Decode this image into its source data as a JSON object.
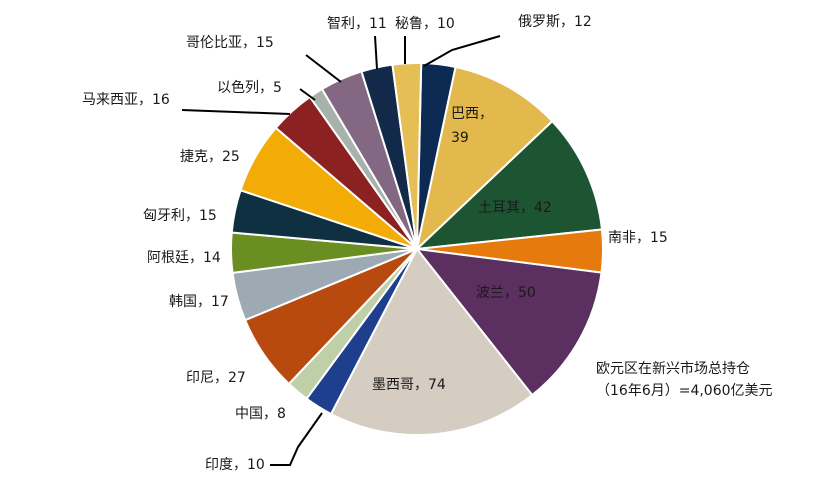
{
  "chart_data": {
    "type": "pie",
    "title": "",
    "slices": [
      {
        "label": "俄罗斯",
        "value": 12,
        "color": "#0d2b52"
      },
      {
        "label": "巴西",
        "value": 39,
        "color": "#e3b84d"
      },
      {
        "label": "土耳其",
        "value": 42,
        "color": "#1d5533"
      },
      {
        "label": "南非",
        "value": 15,
        "color": "#e67a0d"
      },
      {
        "label": "波兰",
        "value": 50,
        "color": "#5b2f5f"
      },
      {
        "label": "墨西哥",
        "value": 74,
        "color": "#d5ccc2"
      },
      {
        "label": "印度",
        "value": 10,
        "color": "#1e3f8e"
      },
      {
        "label": "中国",
        "value": 8,
        "color": "#bfcfa8"
      },
      {
        "label": "印尼",
        "value": 27,
        "color": "#b8490f"
      },
      {
        "label": "韩国",
        "value": 17,
        "color": "#9daab3"
      },
      {
        "label": "阿根廷",
        "value": 14,
        "color": "#6a8e22"
      },
      {
        "label": "匈牙利",
        "value": 15,
        "color": "#0e3040"
      },
      {
        "label": "捷克",
        "value": 25,
        "color": "#f2ac05"
      },
      {
        "label": "马来西亚",
        "value": 16,
        "color": "#8b2121"
      },
      {
        "label": "以色列",
        "value": 5,
        "color": "#a8b2ad"
      },
      {
        "label": "哥伦比亚",
        "value": 15,
        "color": "#846883"
      },
      {
        "label": "智利",
        "value": 11,
        "color": "#13294a"
      },
      {
        "label": "秘鲁",
        "value": 10,
        "color": "#e5be55"
      }
    ],
    "label_separator": "，",
    "annotation": [
      "欧元区在新兴市场总持仓",
      "（16年6月）=4,060亿美元"
    ]
  }
}
